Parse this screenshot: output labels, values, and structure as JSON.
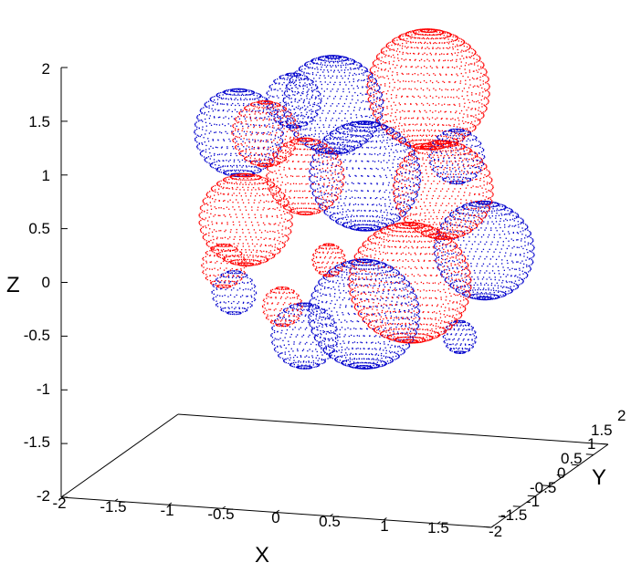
{
  "chart_data": {
    "type": "scatter",
    "plot_style": "3d-surface-dots",
    "title": "",
    "xlabel": "X",
    "ylabel": "Y",
    "zlabel": "Z",
    "xlim": [
      -2,
      2
    ],
    "ylim": [
      -2,
      2
    ],
    "zlim": [
      -2,
      2
    ],
    "x_ticks": [
      "-2",
      "-1.5",
      "-1",
      "-0.5",
      "0",
      "0.5",
      "1",
      "1.5"
    ],
    "y_ticks": [
      "-2",
      "-1.5",
      "-1",
      "-0.5",
      "0",
      "0.5",
      "1",
      "1.5",
      "2"
    ],
    "z_ticks": [
      "-2",
      "-1.5",
      "-1",
      "-0.5",
      "0",
      "0.5",
      "1",
      "1.5",
      "2"
    ],
    "grid": false,
    "legend": "none",
    "series_colors": [
      "#ff0000",
      "#0000cc"
    ],
    "series": [
      {
        "color": "#ff0000",
        "spheres": [
          {
            "center": [
              0.6,
              1.0,
              1.4
            ],
            "r": 0.55
          },
          {
            "center": [
              0.9,
              0.4,
              0.6
            ],
            "r": 0.45
          },
          {
            "center": [
              0.7,
              0.0,
              -0.2
            ],
            "r": 0.55
          },
          {
            "center": [
              -0.7,
              0.2,
              1.05
            ],
            "r": 0.3
          },
          {
            "center": [
              -0.3,
              0.1,
              0.7
            ],
            "r": 0.35
          },
          {
            "center": [
              -0.8,
              -0.1,
              0.3
            ],
            "r": 0.42
          },
          {
            "center": [
              -0.95,
              -0.3,
              -0.1
            ],
            "r": 0.2
          },
          {
            "center": [
              -0.35,
              -0.5,
              -0.4
            ],
            "r": 0.18
          },
          {
            "center": [
              0.0,
              -0.2,
              0.0
            ],
            "r": 0.15
          }
        ]
      },
      {
        "color": "#0000cc",
        "spheres": [
          {
            "center": [
              -0.15,
              0.5,
              1.3
            ],
            "r": 0.45
          },
          {
            "center": [
              -1.0,
              0.4,
              1.0
            ],
            "r": 0.4
          },
          {
            "center": [
              -0.6,
              0.8,
              1.25
            ],
            "r": 0.25
          },
          {
            "center": [
              0.2,
              0.3,
              0.7
            ],
            "r": 0.5
          },
          {
            "center": [
              1.2,
              0.7,
              0.0
            ],
            "r": 0.45
          },
          {
            "center": [
              1.0,
              0.5,
              0.9
            ],
            "r": 0.25
          },
          {
            "center": [
              0.3,
              -0.1,
              -0.5
            ],
            "r": 0.5
          },
          {
            "center": [
              -0.2,
              -0.3,
              -0.7
            ],
            "r": 0.3
          },
          {
            "center": [
              -0.8,
              -0.5,
              -0.3
            ],
            "r": 0.2
          },
          {
            "center": [
              1.0,
              0.6,
              -0.8
            ],
            "r": 0.15
          }
        ]
      }
    ]
  }
}
